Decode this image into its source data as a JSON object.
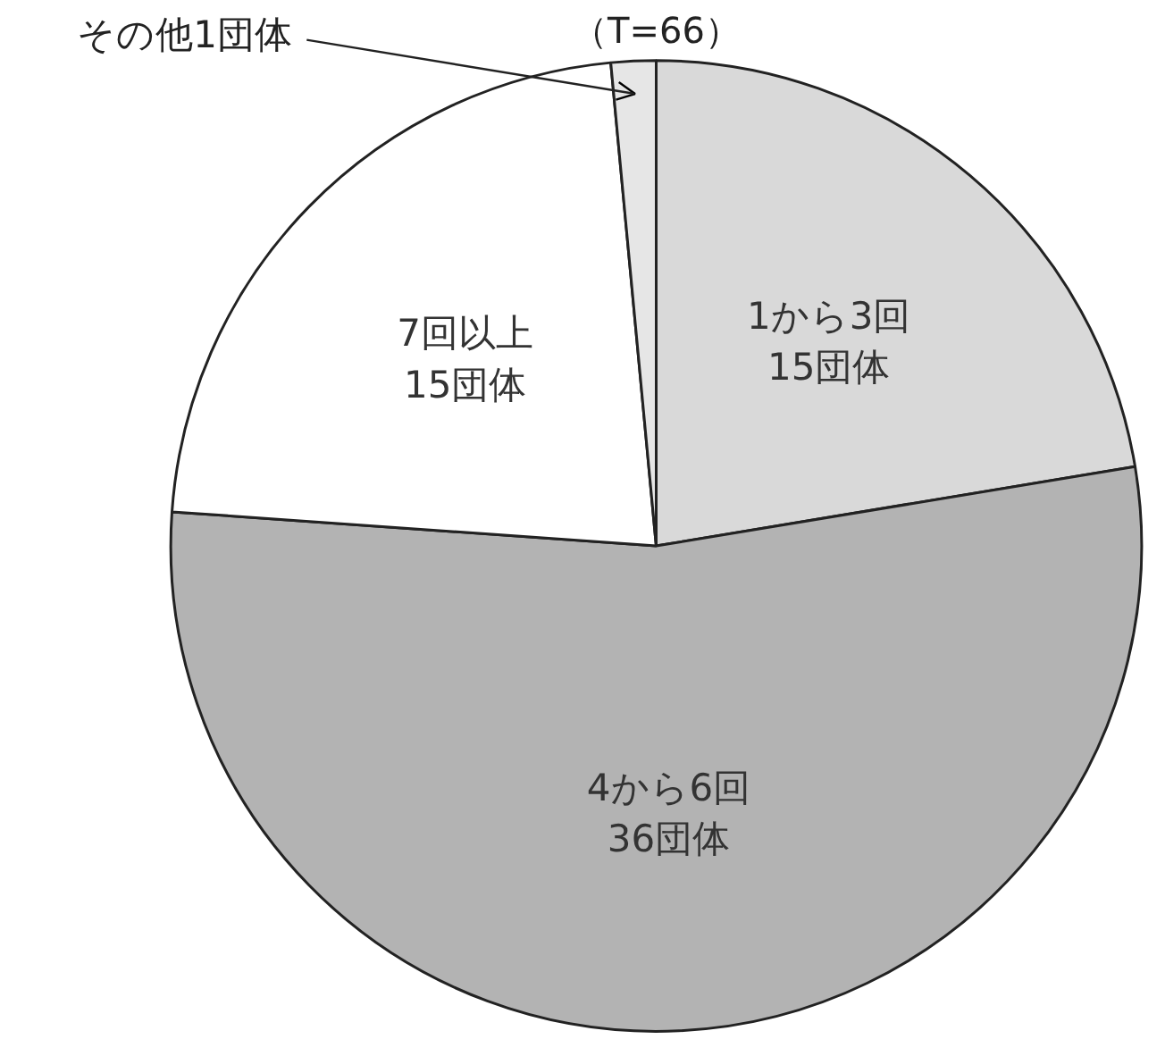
{
  "chart_data": {
    "type": "pie",
    "title": "（T=66）",
    "categories": [
      "1から3回",
      "4から6回",
      "7回以上",
      "その他"
    ],
    "values": [
      15,
      36,
      15,
      1
    ],
    "colors": [
      "#d9d9d9",
      "#b3b3b3",
      "#ffffff",
      "#e6e6e6"
    ],
    "value_labels": [
      "15団体",
      "36団体",
      "15団体",
      "1団体"
    ]
  }
}
